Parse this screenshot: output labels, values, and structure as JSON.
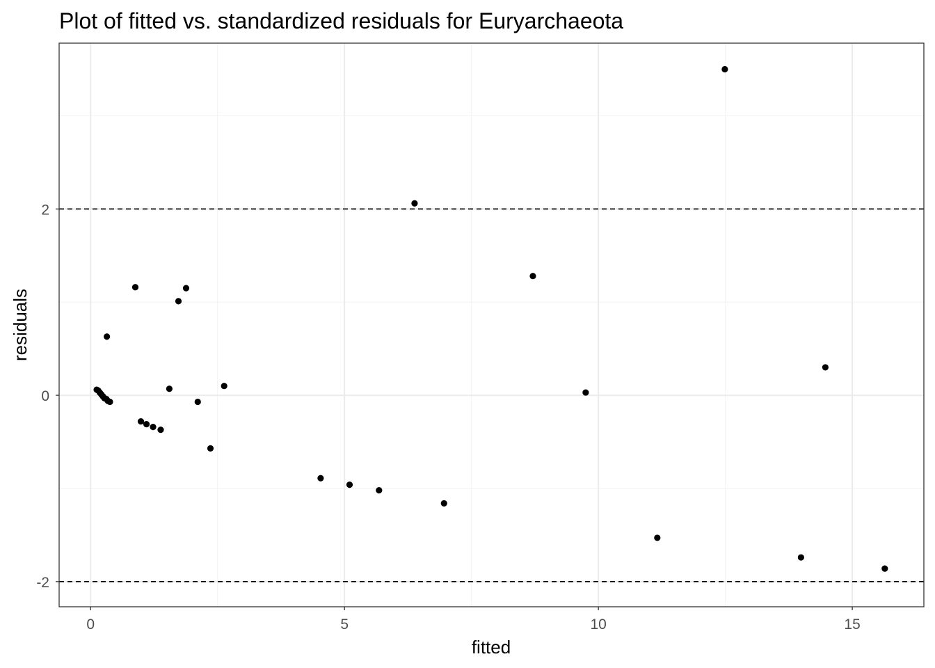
{
  "chart_data": {
    "type": "scatter",
    "title": "Plot of fitted vs. standardized residuals for Euryarchaeota",
    "xlabel": "fitted",
    "ylabel": "residuals",
    "xlim": [
      -0.62,
      16.41
    ],
    "ylim": [
      -2.27,
      3.78
    ],
    "xticks": [
      0,
      5,
      10,
      15
    ],
    "yticks": [
      -2,
      0,
      2
    ],
    "xtick_labels": [
      "0",
      "5",
      "10",
      "15"
    ],
    "ytick_labels": [
      "-2",
      "0",
      "2"
    ],
    "x_minor_grid": [
      2.5,
      7.5,
      12.5
    ],
    "y_minor_grid": [
      -1,
      1,
      3
    ],
    "grid": true,
    "reference_lines": [
      2,
      -2
    ],
    "reference_line_style": "dashed",
    "point_color": "#000000",
    "points": [
      {
        "x": 0.12,
        "y": 0.06
      },
      {
        "x": 0.15,
        "y": 0.05
      },
      {
        "x": 0.18,
        "y": 0.03
      },
      {
        "x": 0.21,
        "y": 0.01
      },
      {
        "x": 0.24,
        "y": -0.01
      },
      {
        "x": 0.27,
        "y": -0.03
      },
      {
        "x": 0.31,
        "y": -0.04
      },
      {
        "x": 0.34,
        "y": -0.06
      },
      {
        "x": 0.38,
        "y": -0.07
      },
      {
        "x": 0.32,
        "y": 0.63
      },
      {
        "x": 0.88,
        "y": 1.16
      },
      {
        "x": 1.88,
        "y": 1.15
      },
      {
        "x": 1.73,
        "y": 1.01
      },
      {
        "x": 1.55,
        "y": 0.07
      },
      {
        "x": 2.63,
        "y": 0.1
      },
      {
        "x": 2.11,
        "y": -0.07
      },
      {
        "x": 2.36,
        "y": -0.57
      },
      {
        "x": 0.99,
        "y": -0.28
      },
      {
        "x": 1.1,
        "y": -0.31
      },
      {
        "x": 1.23,
        "y": -0.34
      },
      {
        "x": 1.38,
        "y": -0.37
      },
      {
        "x": 4.53,
        "y": -0.89
      },
      {
        "x": 5.1,
        "y": -0.96
      },
      {
        "x": 5.68,
        "y": -1.02
      },
      {
        "x": 6.38,
        "y": 2.06
      },
      {
        "x": 6.96,
        "y": -1.16
      },
      {
        "x": 8.71,
        "y": 1.28
      },
      {
        "x": 9.75,
        "y": 0.03
      },
      {
        "x": 11.16,
        "y": -1.53
      },
      {
        "x": 12.49,
        "y": 3.5
      },
      {
        "x": 13.99,
        "y": -1.74
      },
      {
        "x": 14.47,
        "y": 0.3
      },
      {
        "x": 15.64,
        "y": -1.86
      }
    ]
  }
}
